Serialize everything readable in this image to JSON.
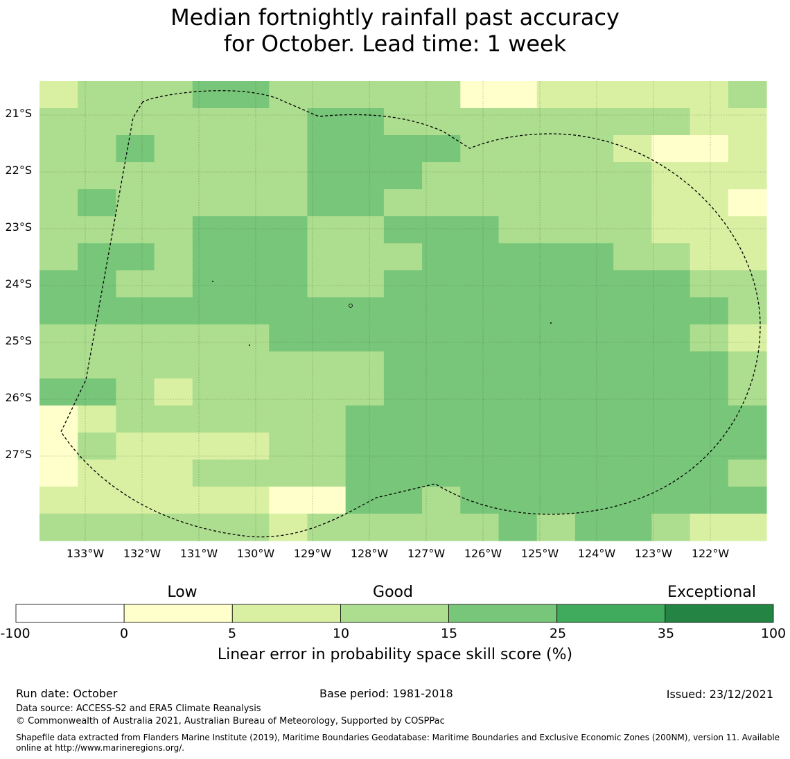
{
  "title": {
    "line1": "Median fortnightly rainfall past accuracy",
    "line2": "for October. Lead time: 1 week"
  },
  "map": {
    "lat_labels": [
      "21°S",
      "22°S",
      "23°S",
      "24°S",
      "25°S",
      "26°S",
      "27°S"
    ],
    "lon_labels": [
      "133°W",
      "132°W",
      "131°W",
      "130°W",
      "129°W",
      "128°W",
      "127°W",
      "126°W",
      "125°W",
      "124°W",
      "123°W",
      "122°W"
    ],
    "cell_classes": [
      "2333443333311222223",
      "3333333443333333322",
      "3343333444433332112",
      "3333333444333333222",
      "3433333443333333221",
      "3333444334443333222",
      "3443444333444443322",
      "4433444334444444433",
      "4444444444444444443",
      "3333334444444444432",
      "3333333334444444443",
      "4432333334444444443",
      "1233333344444444444",
      "1322223344444444444",
      "1222333344444444443",
      "2222221144344444444",
      "3333332333334344322"
    ],
    "class_colors": [
      "#ffffff",
      "#ffffcc",
      "#d9f0a3",
      "#addd8e",
      "#78c679",
      "#41ab5d",
      "#238443"
    ],
    "boundary_style": "dashed"
  },
  "legend": {
    "categories": [
      "Low",
      "Good",
      "Exceptional"
    ],
    "ticks": [
      "-100",
      "0",
      "5",
      "10",
      "15",
      "25",
      "35",
      "100"
    ],
    "colors": [
      "#ffffff",
      "#ffffcc",
      "#d9f0a3",
      "#addd8e",
      "#78c679",
      "#41ab5d",
      "#238443"
    ],
    "title": "Linear error in probability space skill score (%)"
  },
  "footer": {
    "run_date": "Run date: October",
    "base_period": "Base period: 1981-2018",
    "issued": "Issued: 23/12/2021",
    "data_source": "Data source: ACCESS-S2 and ERA5 Climate Reanalysis",
    "copyright": "© Commonwealth of Australia 2021, Australian Bureau of Meteorology, Supported by COSPPac",
    "shapefile": "Shapefile data extracted from Flanders Marine Institute (2019), Maritime Boundaries Geodatabase: Maritime Boundaries and Exclusive Economic Zones (200NM), version 11. Available online at http://www.marineregions.org/."
  }
}
